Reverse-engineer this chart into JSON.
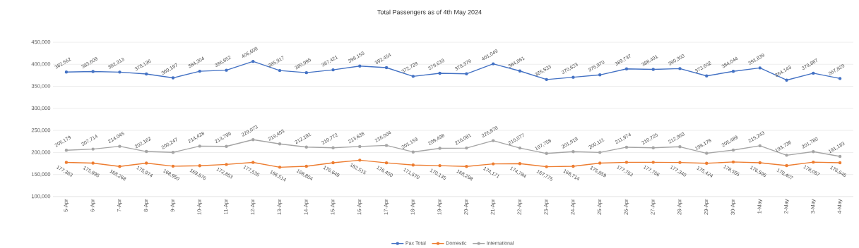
{
  "chart_data": {
    "type": "line",
    "title": "Total Passengers as of 4th May 2024",
    "categories": [
      "5-Apr",
      "6-Apr",
      "7-Apr",
      "8-Apr",
      "9-Apr",
      "10-Apr",
      "11-Apr",
      "12-Apr",
      "13-Apr",
      "14-Apr",
      "15-Apr",
      "16-Apr",
      "17-Apr",
      "18-Apr",
      "19-Apr",
      "20-Apr",
      "21-Apr",
      "22-Apr",
      "23-Apr",
      "24-Apr",
      "25-Apr",
      "26-Apr",
      "27-Apr",
      "28-Apr",
      "29-Apr",
      "30-Apr",
      "1-May",
      "2-May",
      "3-May",
      "4-May"
    ],
    "series": [
      {
        "name": "Pax Total",
        "color": "#4472c4",
        "values": [
          382562,
          383609,
          382313,
          378136,
          369197,
          384304,
          386652,
          406608,
          385917,
          380995,
          387421,
          396153,
          392454,
          372729,
          379633,
          378379,
          401049,
          384861,
          365533,
          370633,
          375970,
          389737,
          388491,
          390303,
          373602,
          384044,
          391839,
          364143,
          379867,
          367829
        ],
        "value_labels": [
          "382,562",
          "383,609",
          "382,313",
          "378,136",
          "369,197",
          "384,304",
          "386,652",
          "406,608",
          "385,917",
          "380,995",
          "387,421",
          "396,153",
          "392,454",
          "372,729",
          "379,633",
          "378,379",
          "401,049",
          "384,861",
          "365,533",
          "370,633",
          "375,970",
          "389,737",
          "388,491",
          "390,303",
          "373,602",
          "384,044",
          "391,839",
          "364,143",
          "379,867",
          "367,829"
        ]
      },
      {
        "name": "Domestic",
        "color": "#ed7d31",
        "values": [
          177383,
          175895,
          168268,
          175974,
          168950,
          169876,
          172853,
          177535,
          166514,
          168804,
          176649,
          182515,
          176450,
          171570,
          170135,
          168298,
          174171,
          174784,
          167775,
          168714,
          175859,
          177763,
          177766,
          177340,
          175424,
          178555,
          176596,
          170407,
          178087,
          176646
        ],
        "value_labels": [
          "177,383",
          "175,895",
          "168,268",
          "175,974",
          "168,950",
          "169,876",
          "172,853",
          "177,535",
          "166,514",
          "168,804",
          "176,649",
          "182,515",
          "176,450",
          "171,570",
          "170,135",
          "168,298",
          "174,171",
          "174,784",
          "167,775",
          "168,714",
          "175,859",
          "177,763",
          "177,766",
          "177,340",
          "175,424",
          "178,555",
          "176,596",
          "170,407",
          "178,087",
          "176,646"
        ]
      },
      {
        "name": "International",
        "color": "#a5a5a5",
        "values": [
          205179,
          207714,
          214045,
          202162,
          200247,
          214428,
          213799,
          229073,
          219403,
          212191,
          210772,
          213638,
          216004,
          201159,
          209498,
          210081,
          226878,
          210077,
          197758,
          201919,
          200111,
          211974,
          210725,
          212963,
          198178,
          205489,
          215243,
          193736,
          201780,
          191183
        ],
        "value_labels": [
          "205,179",
          "207,714",
          "214,045",
          "202,162",
          "200,247",
          "214,428",
          "213,799",
          "229,073",
          "219,403",
          "212,191",
          "210,772",
          "213,638",
          "216,004",
          "201,159",
          "209,498",
          "210,081",
          "226,878",
          "210,077",
          "197,758",
          "201,919",
          "200,111",
          "211,974",
          "210,725",
          "212,963",
          "198,178",
          "205,489",
          "215,243",
          "193,736",
          "201,780",
          "191,183"
        ]
      }
    ],
    "ylim": [
      100000,
      450000
    ],
    "yticks": [
      {
        "value": 100000,
        "label": "100,000"
      },
      {
        "value": 150000,
        "label": "150,000"
      },
      {
        "value": 200000,
        "label": "200,000"
      },
      {
        "value": 250000,
        "label": "250,000"
      },
      {
        "value": 300000,
        "label": "300,000"
      },
      {
        "value": 350000,
        "label": "350,000"
      },
      {
        "value": 400000,
        "label": "400,000"
      },
      {
        "value": 450000,
        "label": "450,000"
      }
    ],
    "grid": "y",
    "legend": "bottom",
    "marker": "circle",
    "line_style": "solid"
  }
}
